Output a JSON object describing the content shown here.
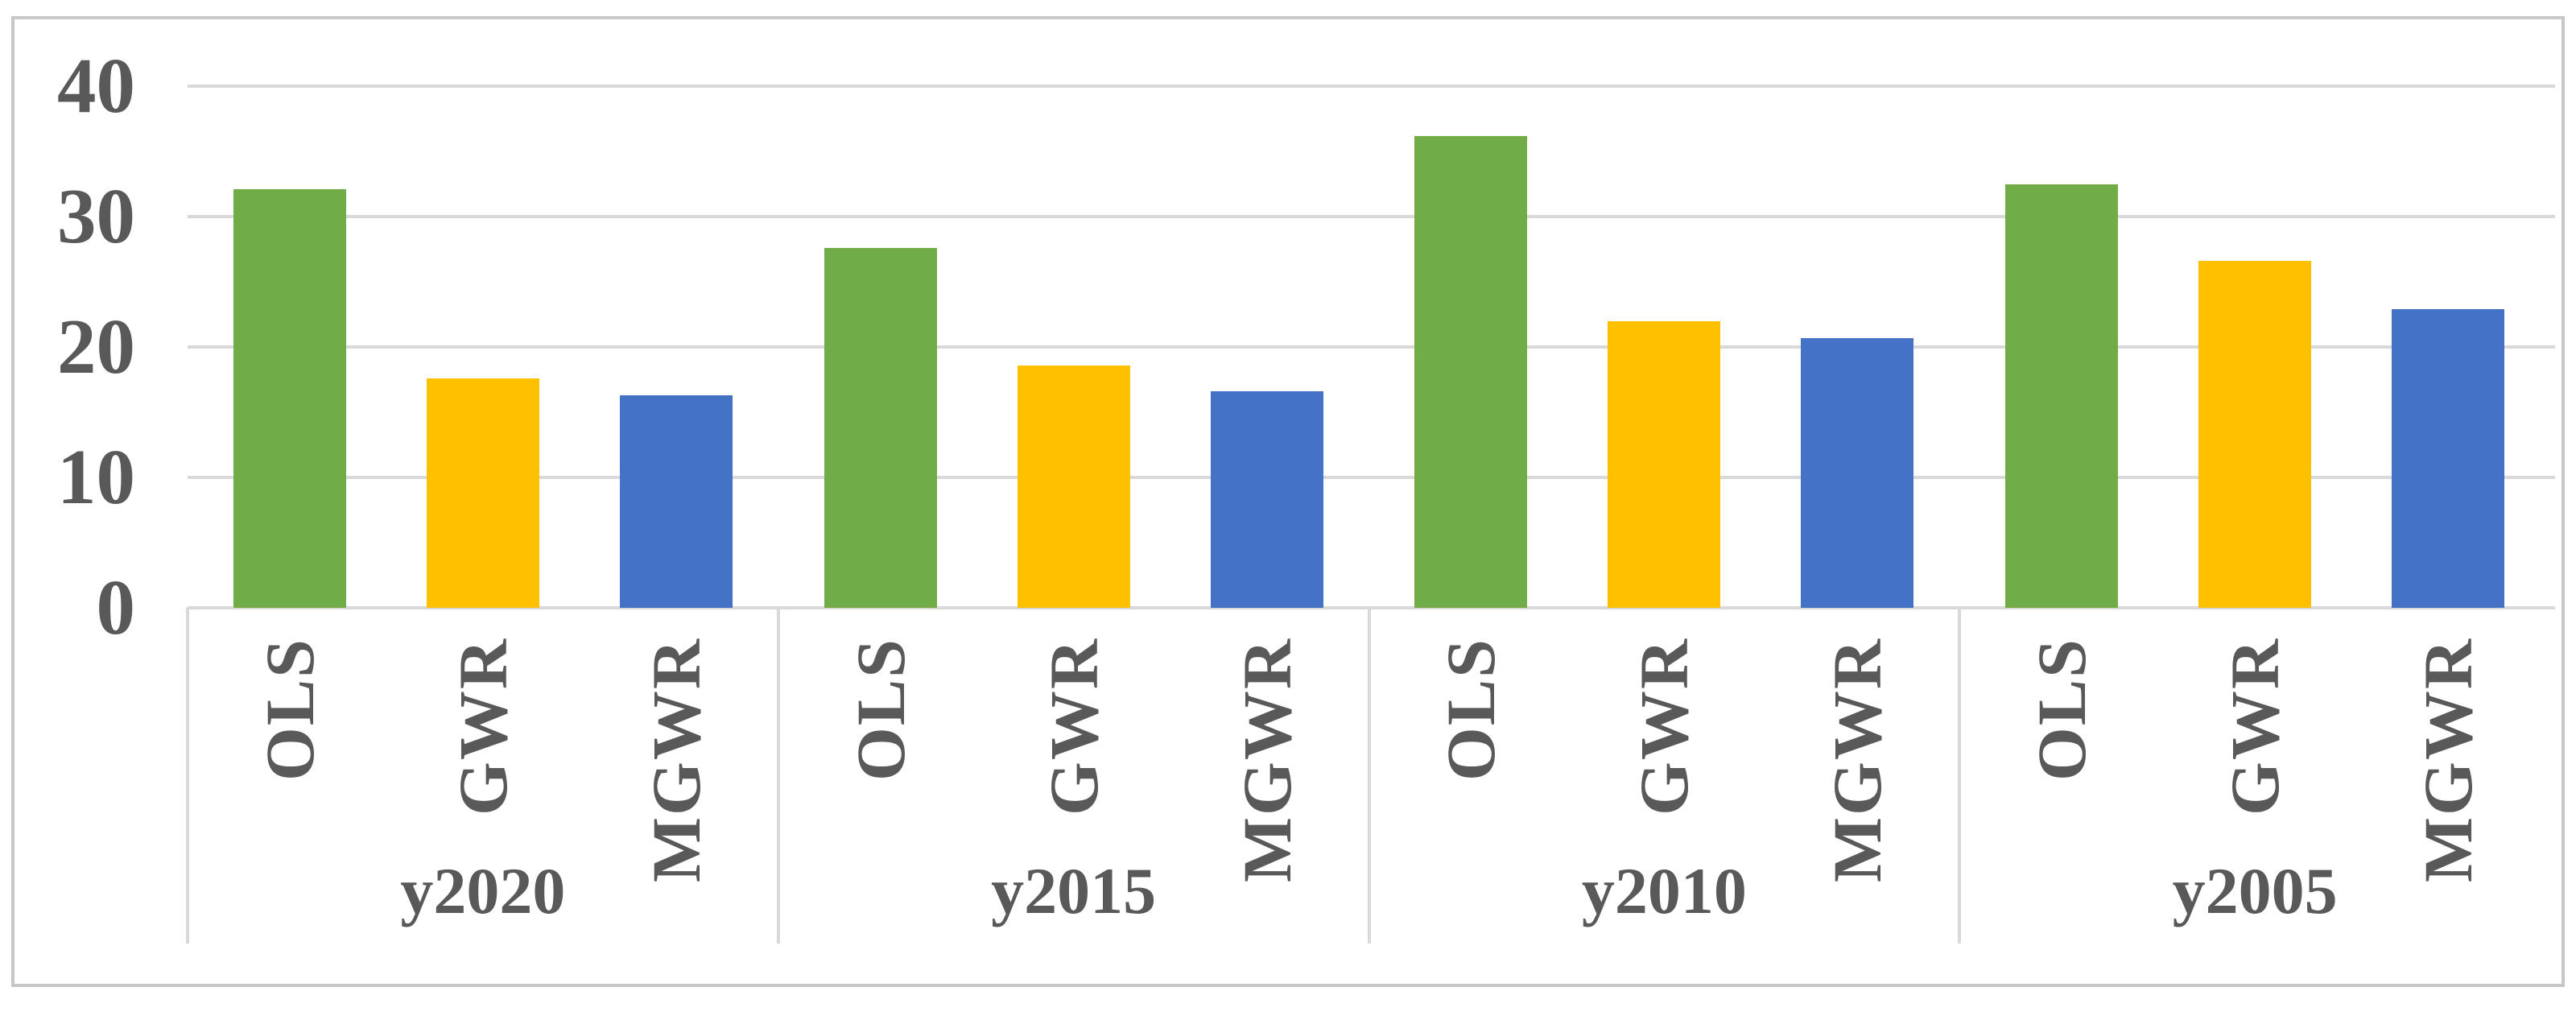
{
  "figure": {
    "background": "#FFFFFF",
    "border_color": "#C8C8C8",
    "gridline_color": "#D9D9D9",
    "text_color": "#595959"
  },
  "chart_data": {
    "type": "bar",
    "title": "",
    "categories": [
      "y2020",
      "y2015",
      "y2010",
      "y2005"
    ],
    "series": [
      {
        "name": "OLS",
        "color": "#70AD47",
        "values": [
          32.1,
          27.6,
          36.2,
          32.5
        ]
      },
      {
        "name": "GWR",
        "color": "#FFC000",
        "values": [
          17.6,
          18.6,
          22.0,
          26.6
        ]
      },
      {
        "name": "MGWR",
        "color": "#4472C4",
        "values": [
          16.3,
          16.6,
          20.7,
          22.9
        ]
      }
    ],
    "y_axis": {
      "min": 0,
      "max": 40,
      "ticks": [
        40,
        30,
        20,
        10,
        0
      ]
    },
    "x_axis": {
      "bar_labels_rotated_90ccw": true
    },
    "gridlines": true,
    "legend_position": "none"
  }
}
